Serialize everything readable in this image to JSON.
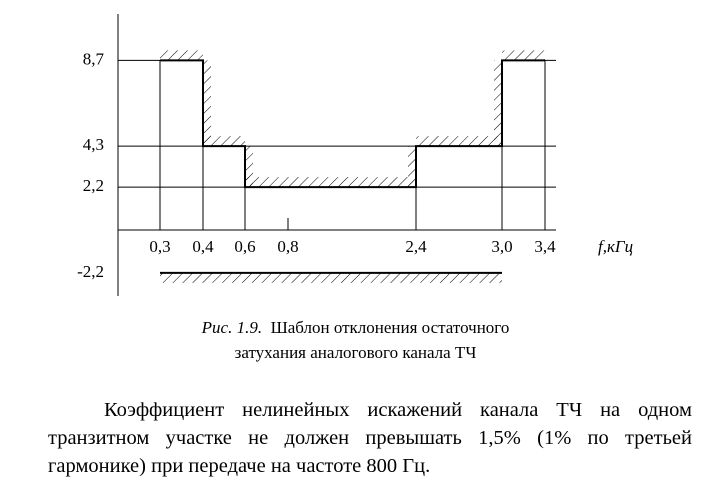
{
  "figure": {
    "y_ticks": [
      {
        "value": 8.7,
        "label": "8,7"
      },
      {
        "value": 4.3,
        "label": "4,3"
      },
      {
        "value": 2.2,
        "label": "2,2"
      },
      {
        "value": -2.2,
        "label": "-2,2"
      }
    ],
    "x_ticks": [
      {
        "value": 0.3,
        "label": "0,3"
      },
      {
        "value": 0.4,
        "label": "0,4"
      },
      {
        "value": 0.6,
        "label": "0,6"
      },
      {
        "value": 0.8,
        "label": "0,8"
      },
      {
        "value": 2.4,
        "label": "2,4"
      },
      {
        "value": 3.0,
        "label": "3,0"
      },
      {
        "value": 3.4,
        "label": "3,4"
      }
    ],
    "x_label": "f,кГц"
  },
  "caption": {
    "number": "Рис. 1.9.",
    "lines": [
      "Шаблон отклонения остаточного",
      "затухания аналогового канала ТЧ"
    ]
  },
  "paragraph": "Коэффициент нелинейных искажений канала ТЧ на одном транзитном участке не должен превышать 1,5% (1% по третьей гармонике) при передаче на частоте 800 Гц."
}
